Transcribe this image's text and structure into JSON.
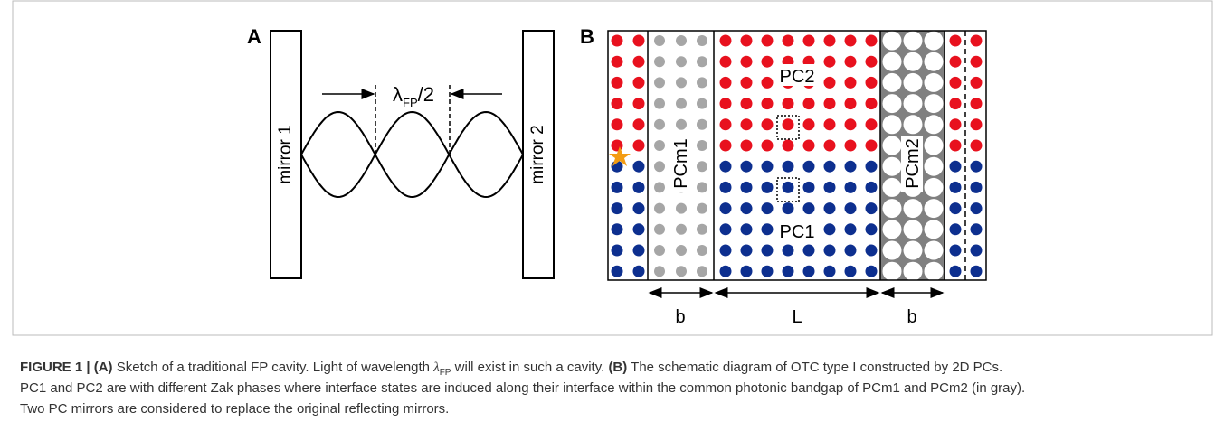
{
  "figure": {
    "panel_a": {
      "label": "A",
      "mirror_left": "mirror 1",
      "mirror_right": "mirror 2",
      "wavelength_symbol": "λ",
      "wavelength_subscript": "FP",
      "wavelength_suffix": "/2"
    },
    "panel_b": {
      "label": "B",
      "pc2": "PC2",
      "pc1": "PC1",
      "pcm1": "PCm1",
      "pcm2": "PCm2",
      "dim_left": "b",
      "dim_middle": "L",
      "dim_right": "b"
    },
    "caption": {
      "figure_label": "FIGURE 1 |",
      "a_label": "(A)",
      "a_text_1": "Sketch of a traditional FP cavity. Light of wavelength",
      "a_symbol": "λ",
      "a_subscript": "FP",
      "a_text_2": "will exist in such a cavity.",
      "b_label": "(B)",
      "b_line_1": "The schematic diagram of OTC type I constructed by 2D PCs.",
      "b_line_2": "PC1 and PC2 are with different Zak phases where interface states are induced along their interface within the common photonic bandgap of PCm1 and PCm2 (in gray).",
      "b_line_3": "Two PC mirrors are considered to replace the original reflecting mirrors."
    }
  }
}
